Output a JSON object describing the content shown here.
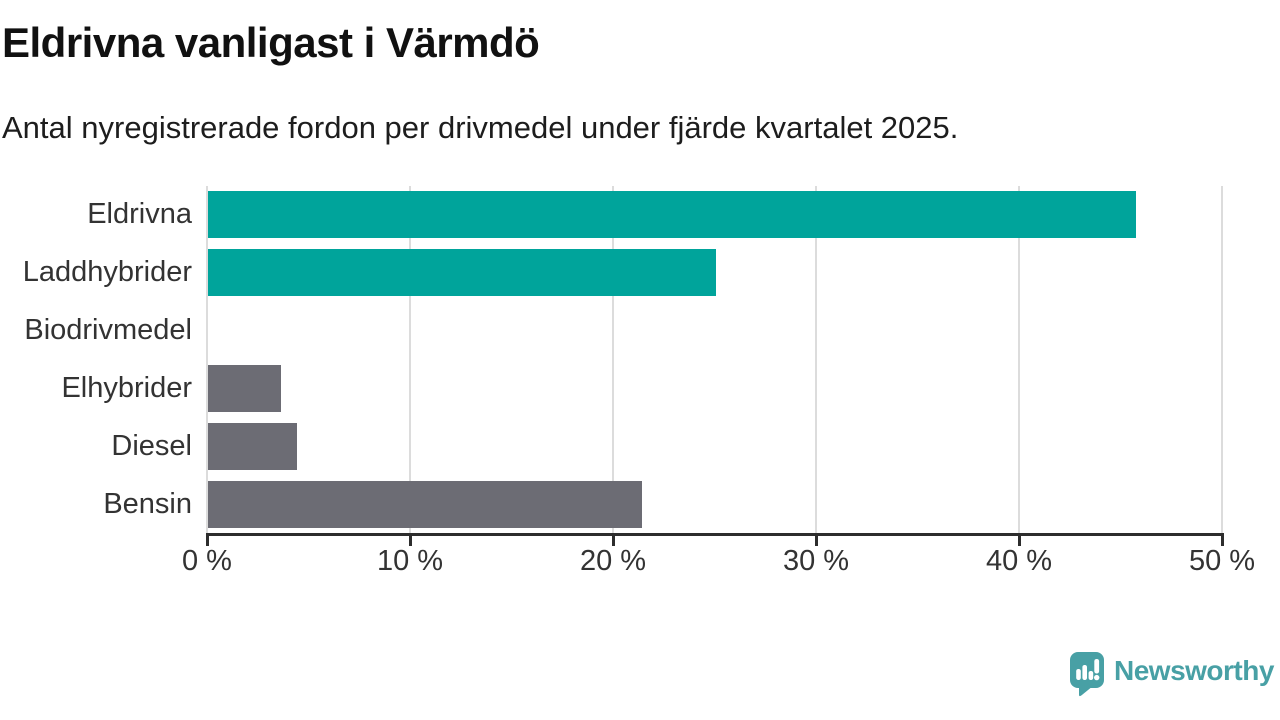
{
  "header": {
    "title": "Eldrivna vanligast i Värmdö",
    "subtitle": "Antal nyregistrerade fordon per drivmedel under fjärde kvartalet 2025."
  },
  "chart_data": {
    "type": "bar",
    "orientation": "horizontal",
    "title": "Eldrivna vanligast i Värmdö",
    "subtitle": "Antal nyregistrerade fordon per drivmedel under fjärde kvartalet 2025.",
    "categories": [
      "Eldrivna",
      "Laddhybrider",
      "Biodrivmedel",
      "Elhybrider",
      "Diesel",
      "Bensin"
    ],
    "values": [
      45.7,
      25.0,
      0,
      3.6,
      4.4,
      21.4
    ],
    "unit": "%",
    "bar_colors": [
      "#00a49b",
      "#00a49b",
      "#6c6c74",
      "#6c6c74",
      "#6c6c74",
      "#6c6c74"
    ],
    "xlim": [
      0,
      50
    ],
    "x_ticks": [
      0,
      10,
      20,
      30,
      40,
      50
    ],
    "x_tick_labels": [
      "0 %",
      "10 %",
      "20 %",
      "30 %",
      "40 %",
      "50 %"
    ],
    "grid": "vertical-gridlines-behind-bars",
    "legend": "none"
  },
  "colors": {
    "accent_teal": "#00a49b",
    "neutral_gray": "#6c6c74",
    "axis": "#2d2d2d",
    "gridline": "#dcdcdc",
    "logo_teal": "#48a0a5"
  },
  "footer": {
    "brand": "Newsworthy",
    "logo_icon": "newsworthy-speech-bubble-barchart-icon"
  }
}
